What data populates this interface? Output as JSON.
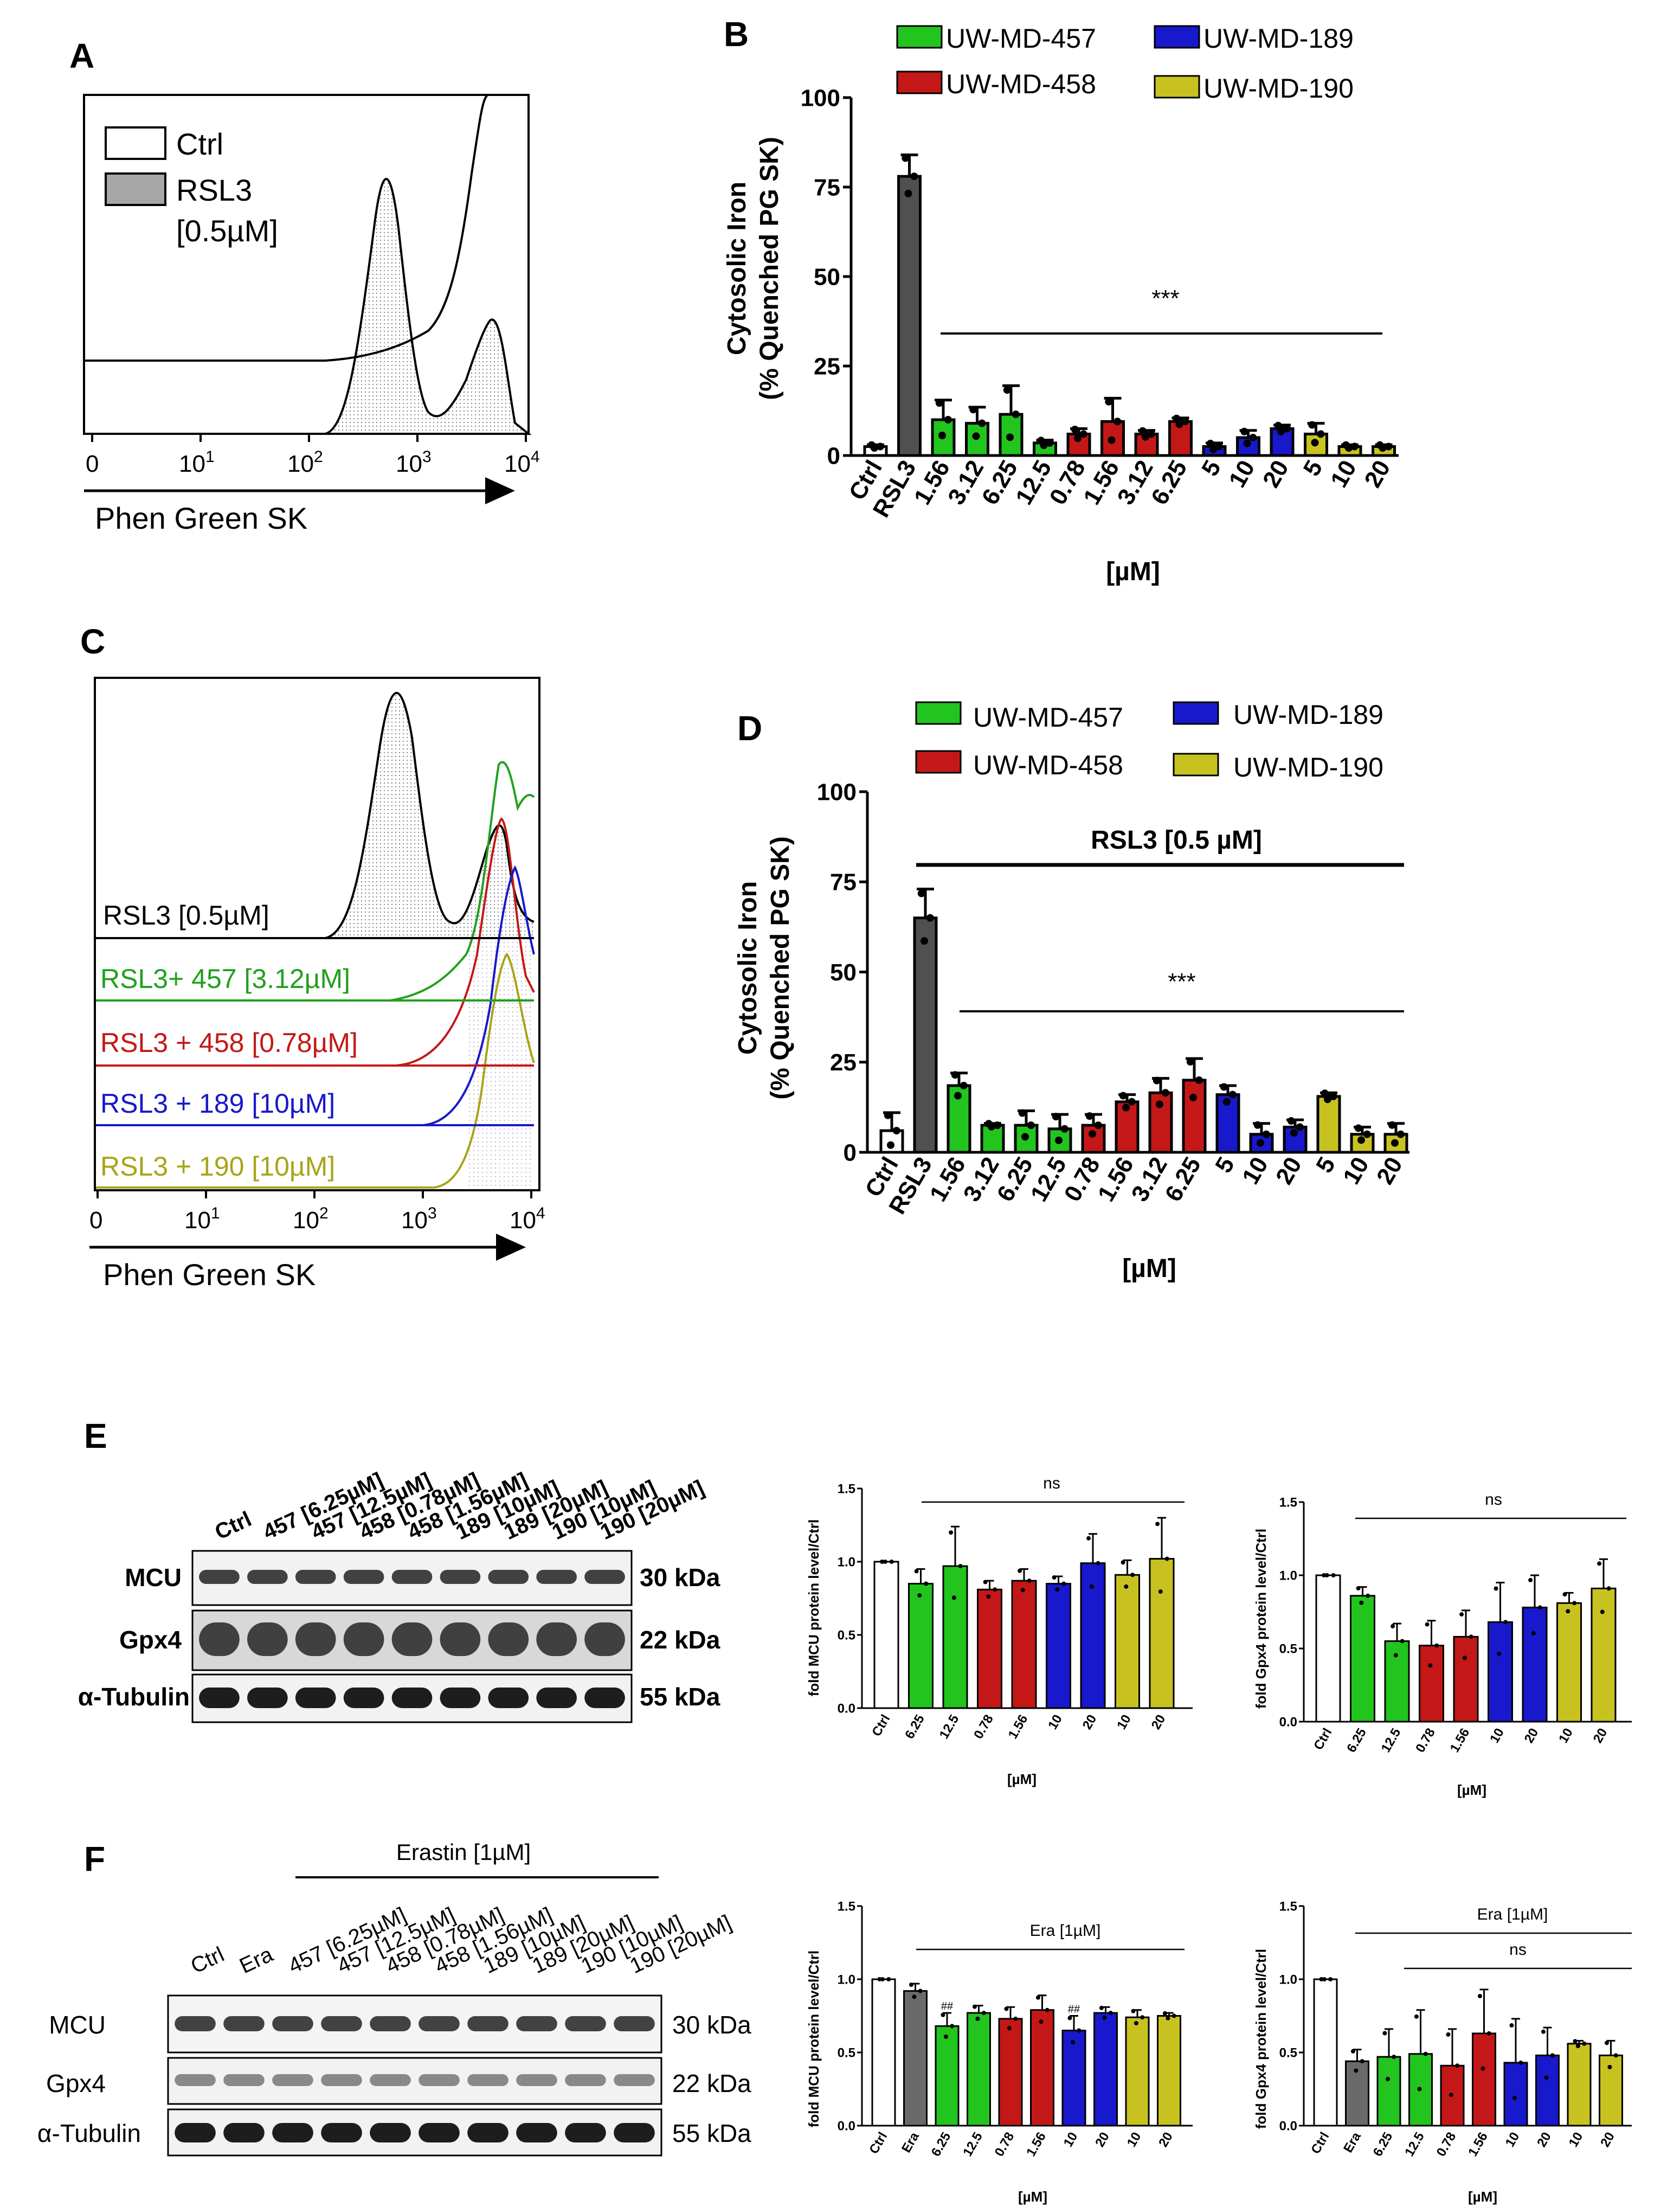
{
  "panel_letters": [
    "A",
    "B",
    "C",
    "D",
    "E",
    "F"
  ],
  "colors": {
    "ctrl": "#ffffff",
    "rsl3": "#505050",
    "era": "#6a6a6a",
    "uw457": "#22c41e",
    "uw458": "#c41818",
    "uw189": "#1818cc",
    "uw190": "#c8c220"
  },
  "panel_a": {
    "axis_label": "Phen Green SK",
    "legend": [
      "Ctrl",
      "RSL3",
      "[0.5µM]"
    ],
    "tick_labels": [
      "0",
      "10",
      "10",
      "10",
      "10"
    ],
    "tick_sup": [
      "1",
      "2",
      "3",
      "4"
    ]
  },
  "panel_c": {
    "axis_label": "Phen Green SK",
    "tick_labels": [
      "0",
      "10",
      "10",
      "10",
      "10"
    ],
    "tick_sup": [
      "1",
      "2",
      "3",
      "4"
    ],
    "traces": [
      {
        "label": "RSL3 [0.5µM]",
        "color": "#000000"
      },
      {
        "label": "RSL3+ 457 [3.12µM]",
        "color": "#22a01e"
      },
      {
        "label": "RSL3 + 458 [0.78µM]",
        "color": "#c41818"
      },
      {
        "label": "RSL3 + 189 [10µM]",
        "color": "#1818cc"
      },
      {
        "label": "RSL3 + 190 [10µM]",
        "color": "#a8a418"
      }
    ]
  },
  "chart_data": [
    {
      "id": "B",
      "type": "bar",
      "ylabel_line1": "Cytosolic Iron",
      "ylabel_line2": "(% Quenched PG SK)",
      "xlabel": "[µM]",
      "ylim": [
        0,
        100
      ],
      "yticks": [
        "0",
        "25",
        "50",
        "75",
        "100"
      ],
      "categories": [
        "Ctrl",
        "RSL3",
        "1.56",
        "3.12",
        "6.25",
        "12.5",
        "0.78",
        "1.56",
        "3.12",
        "6.25",
        "5",
        "10",
        "20",
        "5",
        "10",
        "20"
      ],
      "groups": [
        "ctrl",
        "rsl3",
        "uw457",
        "uw457",
        "uw457",
        "uw457",
        "uw458",
        "uw458",
        "uw458",
        "uw458",
        "uw189",
        "uw189",
        "uw189",
        "uw190",
        "uw190",
        "uw190"
      ],
      "values": [
        2.5,
        78,
        10,
        9,
        11.5,
        3.5,
        6,
        9.5,
        6,
        9.5,
        2.5,
        5,
        7.5,
        6,
        2.5,
        2.5
      ],
      "errors": [
        0.5,
        6,
        5.5,
        4.5,
        8,
        0.8,
        1.5,
        6.5,
        1,
        1,
        1,
        2,
        1,
        3,
        0.5,
        0.5
      ],
      "legend": [
        "UW-MD-457",
        "UW-MD-458",
        "UW-MD-189",
        "UW-MD-190"
      ],
      "significance": "***"
    },
    {
      "id": "D",
      "type": "bar",
      "ylabel_line1": "Cytosolic Iron",
      "ylabel_line2": "(% Quenched PG SK)",
      "xlabel": "[µM]",
      "ylim": [
        0,
        100
      ],
      "yticks": [
        "0",
        "25",
        "50",
        "75",
        "100"
      ],
      "categories": [
        "Ctrl",
        "RSL3",
        "1.56",
        "3.12",
        "6.25",
        "12.5",
        "0.78",
        "1.56",
        "3.12",
        "6.25",
        "5",
        "10",
        "20",
        "5",
        "10",
        "20"
      ],
      "groups": [
        "ctrl",
        "rsl3",
        "uw457",
        "uw457",
        "uw457",
        "uw457",
        "uw458",
        "uw458",
        "uw458",
        "uw458",
        "uw189",
        "uw189",
        "uw189",
        "uw190",
        "uw190",
        "uw190"
      ],
      "values": [
        6,
        65,
        18.5,
        7.5,
        7.5,
        6.5,
        7.5,
        14,
        16.5,
        20,
        16,
        5,
        7,
        15.5,
        5,
        5
      ],
      "errors": [
        5,
        8,
        3.5,
        0.5,
        4,
        4,
        3,
        2,
        4,
        6,
        2.5,
        3,
        2,
        1,
        2,
        3
      ],
      "legend": [
        "UW-MD-457",
        "UW-MD-458",
        "UW-MD-189",
        "UW-MD-190"
      ],
      "top_label": "RSL3 [0.5 µM]",
      "significance": "***"
    },
    {
      "id": "E-MCU",
      "type": "bar",
      "ylabel": "fold MCU protein level/Ctrl",
      "xlabel": "[µM]",
      "ylim": [
        0,
        1.5
      ],
      "yticks": [
        "0.0",
        "0.5",
        "1.0",
        "1.5"
      ],
      "categories": [
        "Ctrl",
        "6.25",
        "12.5",
        "0.78",
        "1.56",
        "10",
        "20",
        "10",
        "20"
      ],
      "groups": [
        "ctrl",
        "uw457",
        "uw457",
        "uw458",
        "uw458",
        "uw189",
        "uw189",
        "uw190",
        "uw190"
      ],
      "values": [
        1.0,
        0.85,
        0.97,
        0.81,
        0.87,
        0.85,
        0.99,
        0.91,
        1.02
      ],
      "errors": [
        0.0,
        0.1,
        0.27,
        0.06,
        0.08,
        0.05,
        0.2,
        0.1,
        0.28
      ],
      "annotation": "ns"
    },
    {
      "id": "E-GPX4",
      "type": "bar",
      "ylabel": "fold Gpx4 protein level/Ctrl",
      "xlabel": "[µM]",
      "ylim": [
        0,
        1.5
      ],
      "yticks": [
        "0.0",
        "0.5",
        "1.0",
        "1.5"
      ],
      "categories": [
        "Ctrl",
        "6.25",
        "12.5",
        "0.78",
        "1.56",
        "10",
        "20",
        "10",
        "20"
      ],
      "groups": [
        "ctrl",
        "uw457",
        "uw457",
        "uw458",
        "uw458",
        "uw189",
        "uw189",
        "uw190",
        "uw190"
      ],
      "values": [
        1.0,
        0.86,
        0.55,
        0.52,
        0.58,
        0.68,
        0.78,
        0.81,
        0.91
      ],
      "errors": [
        0.0,
        0.06,
        0.12,
        0.17,
        0.18,
        0.27,
        0.22,
        0.07,
        0.2
      ],
      "annotation": "ns"
    },
    {
      "id": "F-MCU",
      "type": "bar",
      "ylabel": "fold MCU protein level/Ctrl",
      "xlabel": "[µM]",
      "ylim": [
        0,
        1.5
      ],
      "yticks": [
        "0.0",
        "0.5",
        "1.0",
        "1.5"
      ],
      "categories": [
        "Ctrl",
        "Era",
        "6.25",
        "12.5",
        "0.78",
        "1.56",
        "10",
        "20",
        "10",
        "20"
      ],
      "groups": [
        "ctrl",
        "era",
        "uw457",
        "uw457",
        "uw458",
        "uw458",
        "uw189",
        "uw189",
        "uw190",
        "uw190"
      ],
      "values": [
        1.0,
        0.92,
        0.68,
        0.77,
        0.73,
        0.79,
        0.65,
        0.77,
        0.74,
        0.75
      ],
      "errors": [
        0.0,
        0.05,
        0.09,
        0.05,
        0.08,
        0.1,
        0.1,
        0.04,
        0.05,
        0.02
      ],
      "bar_marks": [
        "",
        "",
        "##",
        "",
        "",
        "",
        "##",
        "",
        "",
        ""
      ],
      "top_label": "Era [1µM]"
    },
    {
      "id": "F-GPX4",
      "type": "bar",
      "ylabel": "fold Gpx4 protein level/Ctrl",
      "xlabel": "[µM]",
      "ylim": [
        0,
        1.5
      ],
      "yticks": [
        "0.0",
        "0.5",
        "1.0",
        "1.5"
      ],
      "categories": [
        "Ctrl",
        "Era",
        "6.25",
        "12.5",
        "0.78",
        "1.56",
        "10",
        "20",
        "10",
        "20"
      ],
      "groups": [
        "ctrl",
        "era",
        "uw457",
        "uw457",
        "uw458",
        "uw458",
        "uw189",
        "uw189",
        "uw190",
        "uw190"
      ],
      "values": [
        1.0,
        0.44,
        0.47,
        0.49,
        0.41,
        0.63,
        0.43,
        0.48,
        0.56,
        0.48
      ],
      "errors": [
        0.0,
        0.08,
        0.19,
        0.3,
        0.25,
        0.3,
        0.3,
        0.19,
        0.02,
        0.1
      ],
      "top_label": "Era [1µM]",
      "annotation": "ns"
    }
  ],
  "blot_e": {
    "lanes": [
      "Ctrl",
      "457 [6.25µM]",
      "457 [12.5µM]",
      "458 [0.78µM]",
      "458 [1.56µM]",
      "189 [10µM]",
      "189 [20µM]",
      "190 [10µM]",
      "190 [20µM]"
    ],
    "rows": [
      {
        "label": "MCU",
        "kda": "30 kDa"
      },
      {
        "label": "Gpx4",
        "kda": "22 kDa"
      },
      {
        "label": "α-Tubulin",
        "kda": "55 kDa"
      }
    ]
  },
  "blot_f": {
    "top_label": "Erastin [1µM]",
    "lanes": [
      "Ctrl",
      "Era",
      "457 [6.25µM]",
      "457 [12.5µM]",
      "458 [0.78µM]",
      "458 [1.56µM]",
      "189 [10µM]",
      "189 [20µM]",
      "190 [10µM]",
      "190 [20µM]"
    ],
    "rows": [
      {
        "label": "MCU",
        "kda": "30 kDa"
      },
      {
        "label": "Gpx4",
        "kda": "22 kDa"
      },
      {
        "label": "α-Tubulin",
        "kda": "55 kDa"
      }
    ]
  }
}
